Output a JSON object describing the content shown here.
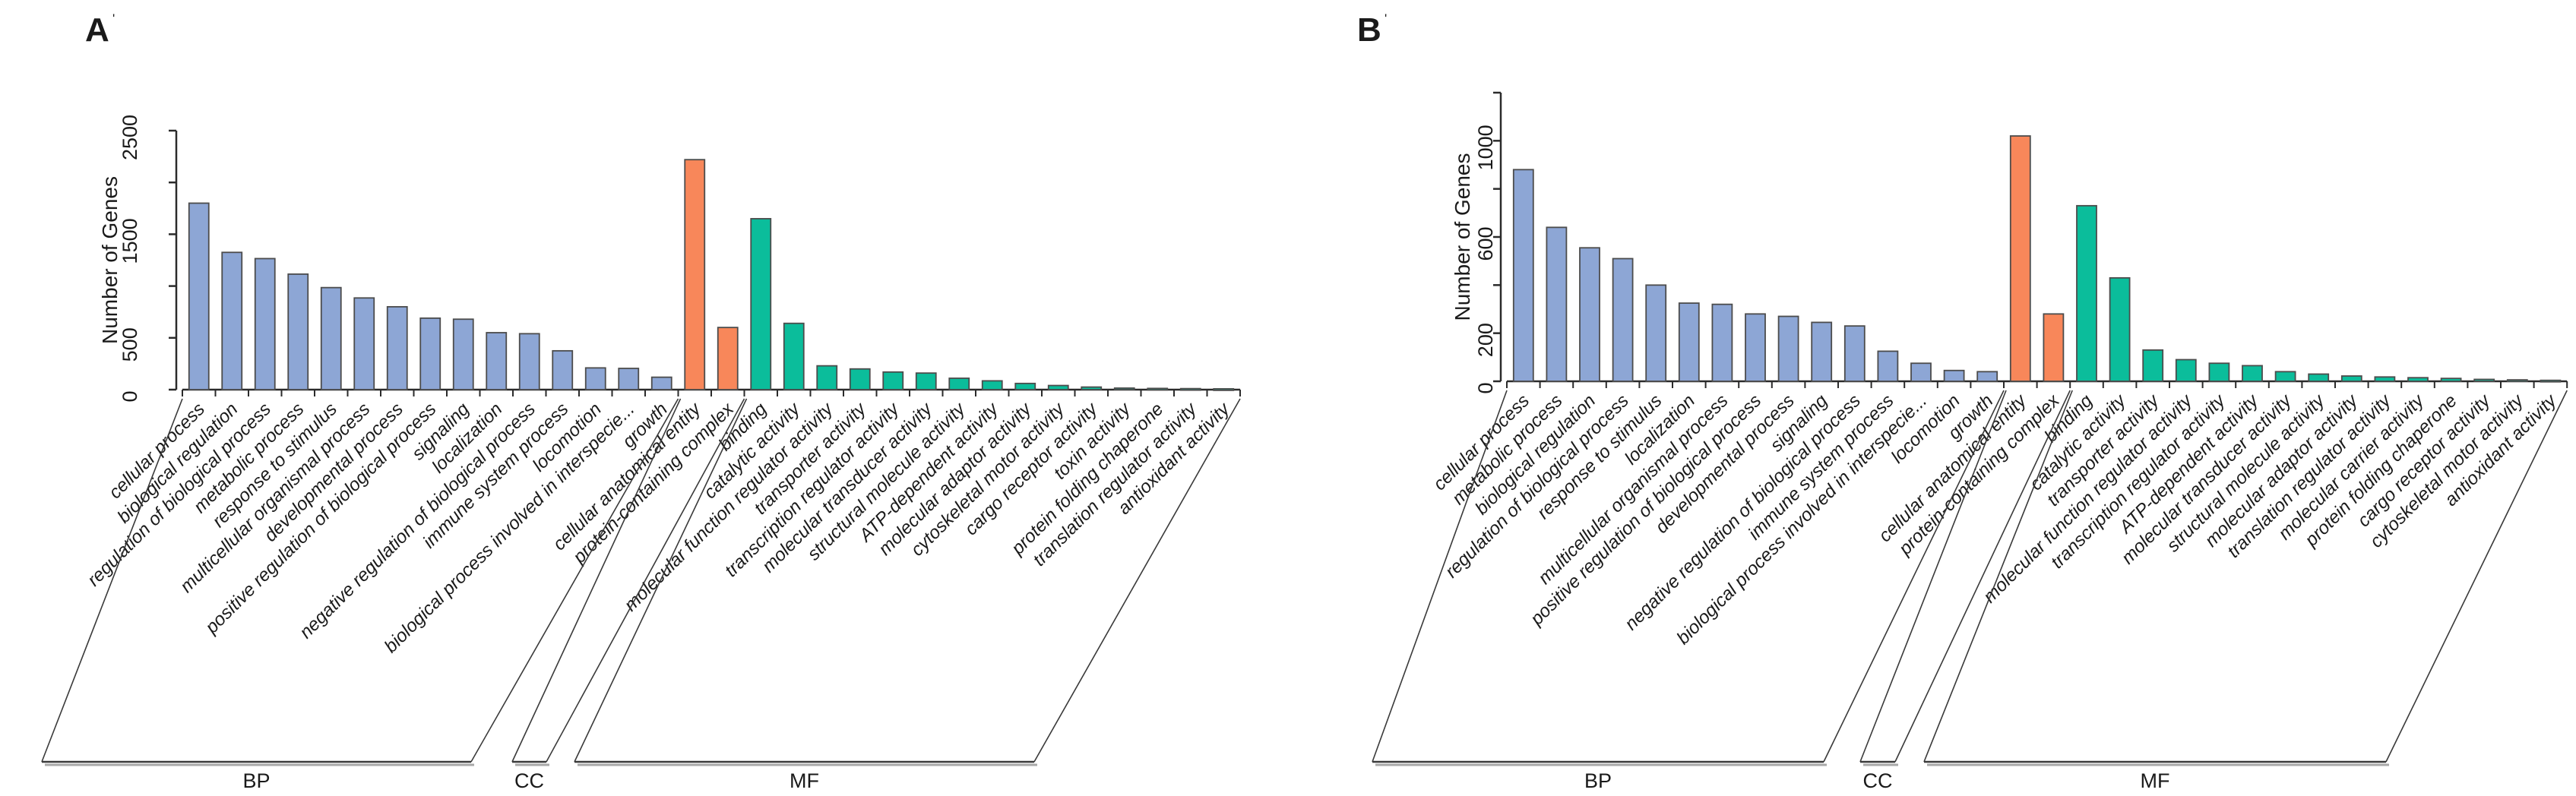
{
  "figure": {
    "colors": {
      "bp_bar": "#8DA6D5",
      "cc_bar": "#F8875A",
      "mf_bar": "#0BBD9B",
      "bar_border": "#4C4C4C",
      "axis": "#2B2B2B",
      "text": "#1A1A1A",
      "bracket_shadow": "#A8A8A8"
    }
  },
  "chart_data": [
    {
      "type": "bar",
      "panel_label": "A",
      "panel_label_mark": "'",
      "title": "",
      "xlabel": "",
      "ylabel": "Number of Genes",
      "ylim": [
        0,
        2500
      ],
      "yticks": {
        "step": 500,
        "max": 2500,
        "labeled": [
          0,
          500,
          1500,
          2500
        ]
      },
      "grid": false,
      "legend_position": "none",
      "groups": [
        {
          "key": "BP",
          "label": "BP",
          "color": "#8DA6D5",
          "categories": [
            "cellular process",
            "biological regulation",
            "regulation of biological process",
            "metabolic process",
            "response to stimulus",
            "multicellular organismal process",
            "developmental process",
            "positive regulation of biological process",
            "signaling",
            "localization",
            "negative regulation of biological process",
            "immune system process",
            "locomotion",
            "biological process involved in interspecie...",
            "growth"
          ],
          "values": [
            1800,
            1325,
            1265,
            1115,
            985,
            885,
            800,
            690,
            680,
            550,
            540,
            375,
            210,
            205,
            120
          ]
        },
        {
          "key": "CC",
          "label": "CC",
          "color": "#F8875A",
          "categories": [
            "cellular anatomical entity",
            "protein-containing complex"
          ],
          "values": [
            2220,
            600
          ]
        },
        {
          "key": "MF",
          "label": "MF",
          "color": "#0BBD9B",
          "categories": [
            "binding",
            "catalytic activity",
            "molecular function regulator activity",
            "transporter activity",
            "transcription regulator activity",
            "molecular transducer activity",
            "structural molecule activity",
            "ATP-dependent activity",
            "molecular adaptor activity",
            "cytoskeletal motor activity",
            "cargo receptor activity",
            "toxin activity",
            "protein folding chaperone",
            "translation regulator activity",
            "antioxidant activity"
          ],
          "values": [
            1650,
            640,
            230,
            200,
            170,
            160,
            110,
            85,
            60,
            40,
            25,
            15,
            12,
            10,
            8
          ]
        }
      ]
    },
    {
      "type": "bar",
      "panel_label": "B",
      "panel_label_mark": "'",
      "title": "",
      "xlabel": "",
      "ylabel": "Number of Genes",
      "ylim": [
        0,
        1200
      ],
      "yticks": {
        "step": 200,
        "max": 1200,
        "labeled": [
          0,
          200,
          600,
          1000
        ]
      },
      "grid": false,
      "legend_position": "none",
      "groups": [
        {
          "key": "BP",
          "label": "BP",
          "color": "#8DA6D5",
          "categories": [
            "cellular process",
            "metabolic process",
            "biological regulation",
            "regulation of biological process",
            "response to stimulus",
            "localization",
            "multicellular organismal process",
            "positive regulation of biological process",
            "developmental process",
            "signaling",
            "negative regulation of biological process",
            "immune system process",
            "biological process involved in interspecie...",
            "locomotion",
            "growth"
          ],
          "values": [
            880,
            640,
            555,
            510,
            400,
            325,
            320,
            280,
            270,
            245,
            230,
            125,
            75,
            45,
            40
          ]
        },
        {
          "key": "CC",
          "label": "CC",
          "color": "#F8875A",
          "categories": [
            "cellular anatomical entity",
            "protein-containing complex"
          ],
          "values": [
            1020,
            280
          ]
        },
        {
          "key": "MF",
          "label": "MF",
          "color": "#0BBD9B",
          "categories": [
            "binding",
            "catalytic activity",
            "transporter activity",
            "molecular function regulator activity",
            "transcription regulator activity",
            "ATP-dependent activity",
            "molecular transducer activity",
            "structural molecule activity",
            "molecular adaptor activity",
            "translation regulator activity",
            "molecular carrier activity",
            "protein folding chaperone",
            "cargo receptor activity",
            "cytoskeletal motor activity",
            "antioxidant activity"
          ],
          "values": [
            730,
            430,
            130,
            90,
            75,
            65,
            40,
            30,
            22,
            18,
            15,
            12,
            8,
            6,
            4
          ]
        }
      ]
    }
  ]
}
